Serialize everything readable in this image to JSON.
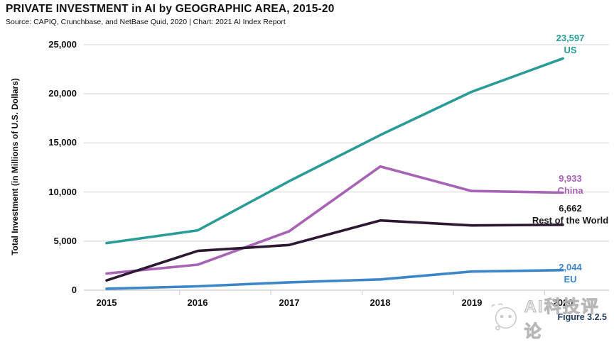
{
  "header": {
    "title": "PRIVATE INVESTMENT in AI by GEOGRAPHIC AREA, 2015-20",
    "source": "Source: CAPIQ, Crunchbase, and NetBase Quid, 2020 | Chart: 2021 AI Index Report"
  },
  "figure_caption": "Figure 3.2.5",
  "watermark": {
    "icon": "face-logo-icon",
    "text": "AI科技评论"
  },
  "chart_data": {
    "type": "line",
    "title": "PRIVATE INVESTMENT in AI by GEOGRAPHIC AREA, 2015-20",
    "ylabel": "Total Investment (in Millions of U.S. Dollars)",
    "xlabel": "",
    "categories": [
      "2015",
      "2016",
      "2017",
      "2018",
      "2019",
      "2020"
    ],
    "ylim": [
      0,
      25000
    ],
    "grid": "horizontal",
    "legend_position": "end-of-line-labels-right",
    "yticks": [
      {
        "value": 0,
        "label": "0"
      },
      {
        "value": 5000,
        "label": "5,000"
      },
      {
        "value": 10000,
        "label": "10,000"
      },
      {
        "value": 15000,
        "label": "15,000"
      },
      {
        "value": 20000,
        "label": "20,000"
      },
      {
        "value": 25000,
        "label": "25,000"
      }
    ],
    "series": [
      {
        "name": "US",
        "color": "#2a9c98",
        "end_label": "23,597",
        "values": [
          4800,
          6100,
          11100,
          15800,
          20200,
          23597
        ]
      },
      {
        "name": "China",
        "color": "#a763b4",
        "end_label": "9,933",
        "values": [
          1700,
          2600,
          6000,
          12600,
          10100,
          9933
        ]
      },
      {
        "name": "Rest of the World",
        "color": "#2d1832",
        "label_color": "#1a1a1a",
        "end_label": "6,662",
        "values": [
          1000,
          4000,
          4600,
          7100,
          6600,
          6662
        ]
      },
      {
        "name": "EU",
        "color": "#3d86c8",
        "end_label": "2,044",
        "values": [
          150,
          400,
          800,
          1100,
          1900,
          2044
        ]
      }
    ]
  }
}
